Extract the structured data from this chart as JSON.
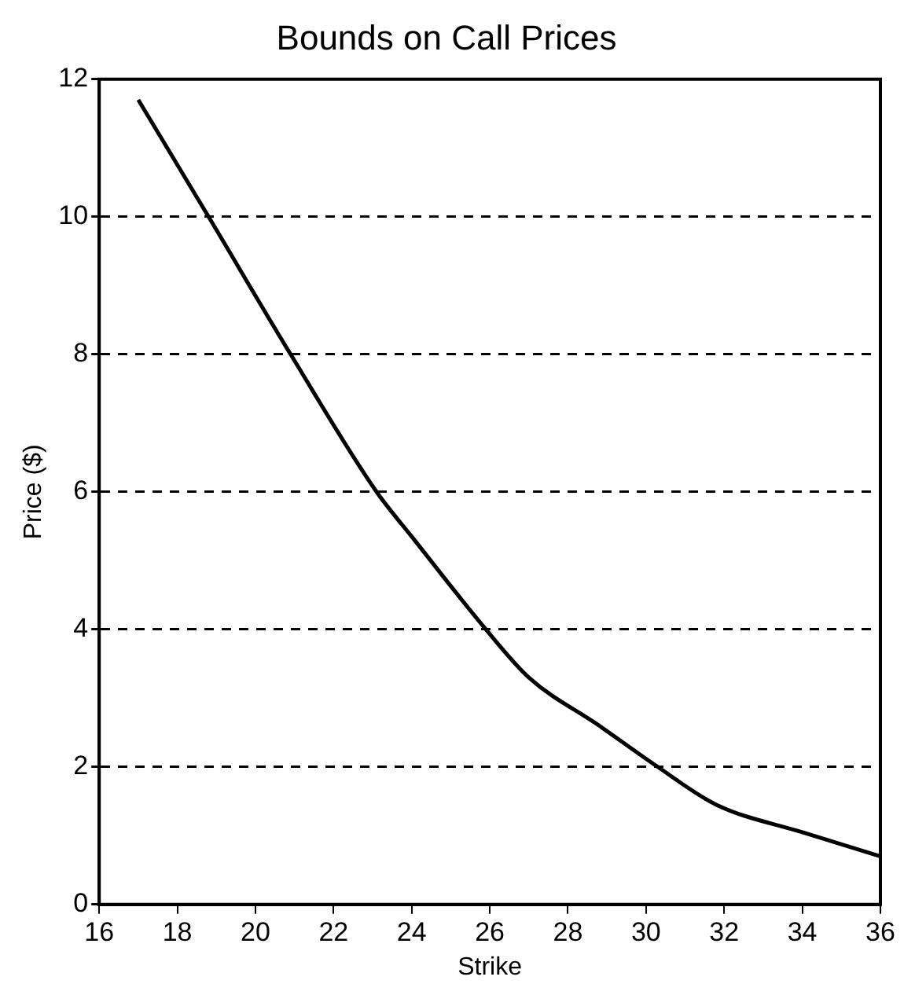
{
  "chart_data": {
    "type": "line",
    "title": "Bounds on Call Prices",
    "xlabel": "Strike",
    "ylabel": "Price ($)",
    "series": [
      {
        "color": "#000000",
        "x": [
          17,
          18.8,
          20.9,
          23.1,
          24,
          25.9,
          27,
          28.8,
          30.3,
          31.8,
          34,
          36
        ],
        "values": [
          11.7,
          10,
          8,
          6,
          5.35,
          4,
          3.3,
          2.6,
          2,
          1.45,
          1.05,
          0.7
        ]
      }
    ],
    "xlim": [
      16,
      36
    ],
    "xticks": [
      16,
      18,
      20,
      22,
      24,
      26,
      28,
      30,
      32,
      34,
      36
    ],
    "ylim": [
      0,
      12
    ],
    "yticks": [
      0,
      2,
      4,
      6,
      8,
      10,
      12
    ],
    "grid": "y",
    "legend": false,
    "marker": "none",
    "line_style": "solid"
  }
}
